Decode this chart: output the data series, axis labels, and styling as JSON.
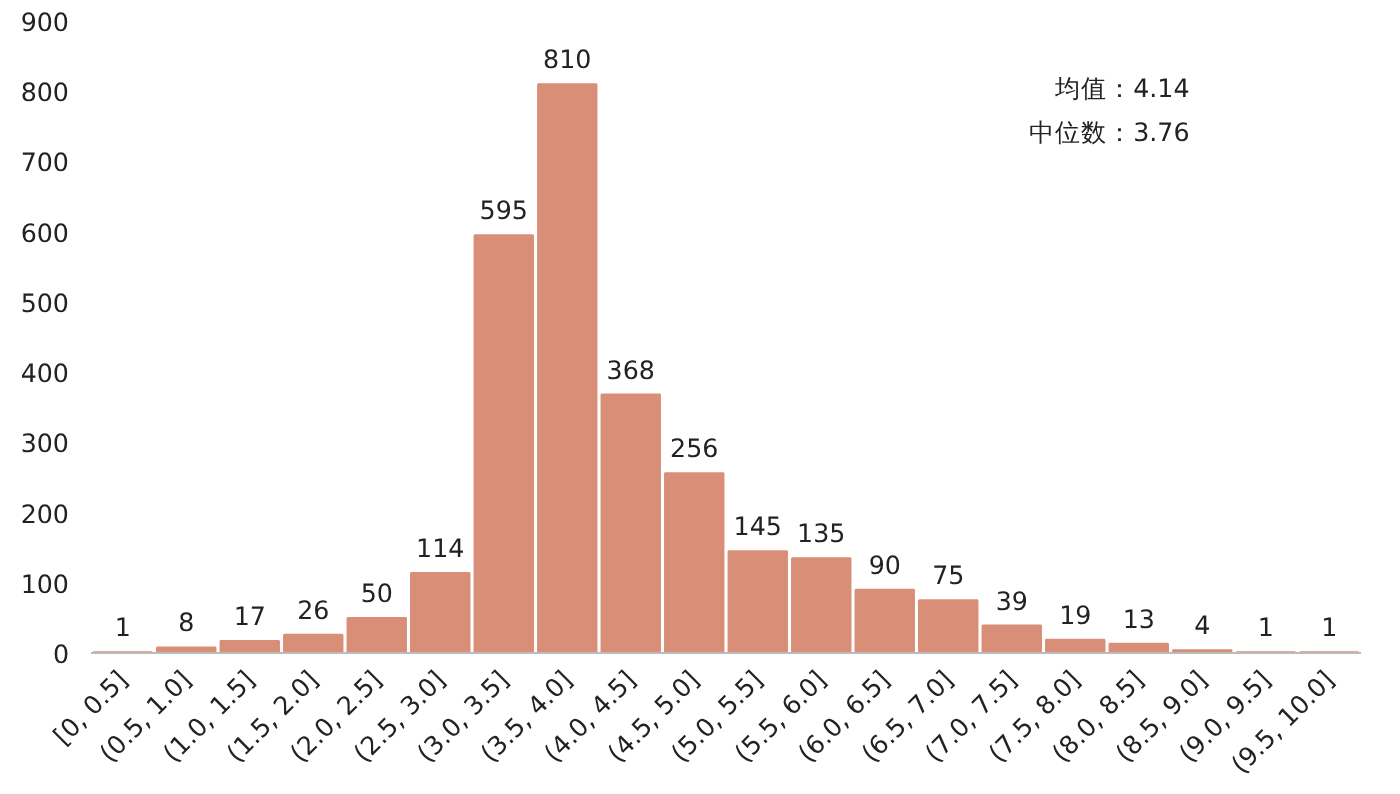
{
  "chart_data": {
    "type": "bar",
    "categories": [
      "[0, 0.5]",
      "(0.5, 1.0]",
      "(1.0, 1.5]",
      "(1.5, 2.0]",
      "(2.0, 2.5]",
      "(2.5, 3.0]",
      "(3.0, 3.5]",
      "(3.5, 4.0]",
      "(4.0, 4.5]",
      "(4.5, 5.0]",
      "(5.0, 5.5]",
      "(5.5, 6.0]",
      "(6.0, 6.5]",
      "(6.5, 7.0]",
      "(7.0, 7.5]",
      "(7.5, 8.0]",
      "(8.0, 8.5]",
      "(8.5, 9.0]",
      "(9.0, 9.5]",
      "(9.5, 10.0]"
    ],
    "values": [
      1,
      8,
      17,
      26,
      50,
      114,
      595,
      810,
      368,
      256,
      145,
      135,
      90,
      75,
      39,
      19,
      13,
      4,
      1,
      1
    ],
    "color": "#d98e78",
    "ylim": [
      0,
      900
    ],
    "yticks": [
      0,
      100,
      200,
      300,
      400,
      500,
      600,
      700,
      800,
      900
    ],
    "grid": false,
    "data_labels": true,
    "annotations": [
      "均值：4.14",
      "中位数：3.76"
    ]
  }
}
